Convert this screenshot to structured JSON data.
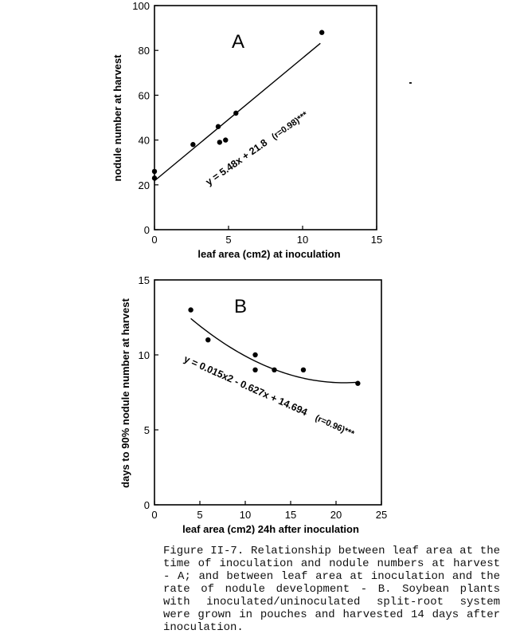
{
  "chart_data": [
    {
      "id": "A",
      "type": "scatter",
      "panel_label": "A",
      "xlabel": "leaf area (cm2) at inoculation",
      "ylabel": "nodule number at harvest",
      "xlim": [
        0,
        15
      ],
      "ylim": [
        0,
        100
      ],
      "xticks": [
        0,
        5,
        10,
        15
      ],
      "yticks": [
        0,
        20,
        40,
        60,
        80,
        100
      ],
      "series": [
        {
          "points": [
            {
              "x": 0.0,
              "y": 26
            },
            {
              "x": 0.0,
              "y": 23
            },
            {
              "x": 2.6,
              "y": 38
            },
            {
              "x": 4.3,
              "y": 46
            },
            {
              "x": 4.4,
              "y": 39
            },
            {
              "x": 4.8,
              "y": 40
            },
            {
              "x": 5.5,
              "y": 52
            },
            {
              "x": 11.3,
              "y": 88
            }
          ]
        }
      ],
      "fit": {
        "kind": "linear",
        "slope": 5.48,
        "intercept": 21.8,
        "x_range": [
          0,
          11.2
        ],
        "equation_label": "y = 5.48x + 21.8",
        "r_label": "(r=0.98)***"
      },
      "grid": false
    },
    {
      "id": "B",
      "type": "scatter",
      "panel_label": "B",
      "xlabel": "leaf area (cm2) 24h after inoculation",
      "ylabel": "days to 90% nodule number at harvest",
      "xlim": [
        0,
        25
      ],
      "ylim": [
        0,
        15
      ],
      "xticks": [
        0,
        5,
        10,
        15,
        20,
        25
      ],
      "yticks": [
        0,
        5,
        10,
        15
      ],
      "series": [
        {
          "points": [
            {
              "x": 4.0,
              "y": 13.0
            },
            {
              "x": 5.9,
              "y": 11.0
            },
            {
              "x": 11.1,
              "y": 10.0
            },
            {
              "x": 11.1,
              "y": 9.0
            },
            {
              "x": 13.2,
              "y": 9.0
            },
            {
              "x": 16.4,
              "y": 9.0
            },
            {
              "x": 22.4,
              "y": 8.1
            }
          ]
        }
      ],
      "fit": {
        "kind": "quadratic",
        "a": 0.015,
        "b": -0.627,
        "c": 14.694,
        "x_range": [
          4.0,
          22.4
        ],
        "equation_label": "y = 0.015x2 - 0.627x + 14.694",
        "r_label": "(r=0.96)***"
      },
      "grid": false
    }
  ],
  "caption": "Figure II-7. Relationship between leaf area at the time of inoculation and nodule numbers at harvest - A; and between leaf area at inoculation and the rate of nodule development - B. Soybean plants with inoculated/uninoculated split-root system were grown in pouches and harvested 14 days after inoculation."
}
